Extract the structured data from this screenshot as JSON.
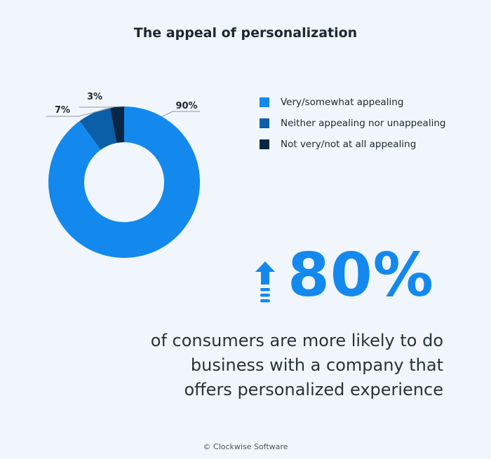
{
  "title": "The appeal of personalization",
  "chart_data": {
    "type": "pie",
    "title": "The appeal of personalization",
    "variant": "donut",
    "legend_position": "right",
    "slices": [
      {
        "label": "Very/somewhat appealing",
        "value": 90,
        "display": "90%",
        "color": "#1389ee"
      },
      {
        "label": "Neither appealing nor unappealing",
        "value": 7,
        "display": "7%",
        "color": "#0a5fa8"
      },
      {
        "label": "Not very/not at all appealing",
        "value": 3,
        "display": "3%",
        "color": "#082744"
      }
    ]
  },
  "highlight": {
    "value": "80%",
    "icon": "up-arrow-icon",
    "color": "#1389ee",
    "statement": "of consumers are more likely to do business with a company that offers personalized experience"
  },
  "credit": "© Clockwise Software"
}
